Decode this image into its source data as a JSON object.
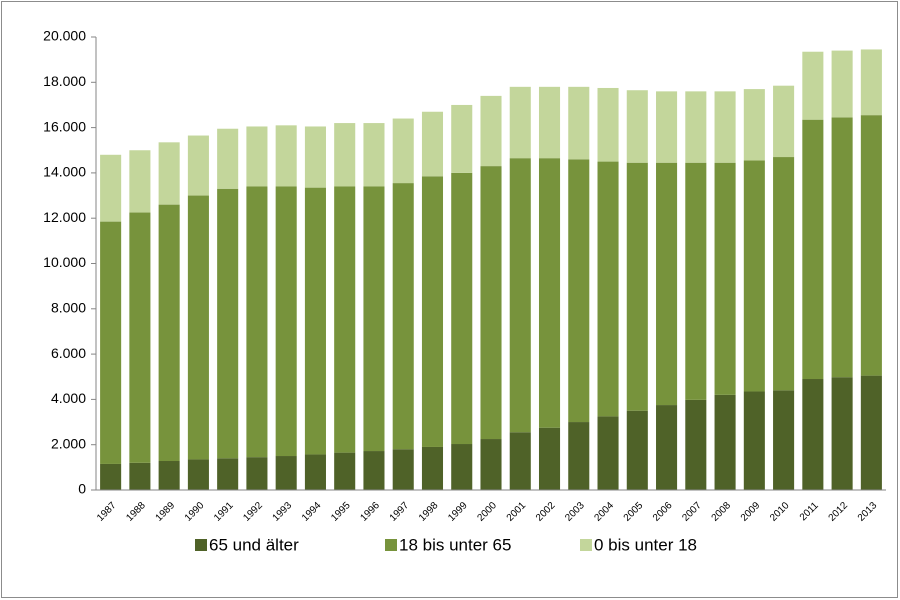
{
  "chart_data": {
    "type": "stacked_bar",
    "categories": [
      "1987",
      "1988",
      "1989",
      "1990",
      "1991",
      "1992",
      "1993",
      "1994",
      "1995",
      "1996",
      "1997",
      "1998",
      "1999",
      "2000",
      "2001",
      "2002",
      "2003",
      "2004",
      "2005",
      "2006",
      "2007",
      "2008",
      "2009",
      "2010",
      "2011",
      "2012",
      "2013"
    ],
    "series": [
      {
        "name": "65 und älter",
        "color": "#4f6228",
        "values": [
          1150,
          1200,
          1280,
          1350,
          1400,
          1450,
          1500,
          1570,
          1650,
          1720,
          1800,
          1900,
          2030,
          2250,
          2550,
          2750,
          3000,
          3250,
          3500,
          3750,
          3980,
          4200,
          4350,
          4400,
          4900,
          4980,
          5050
        ]
      },
      {
        "name": "18 bis unter 65",
        "color": "#77933c",
        "values": [
          10700,
          11050,
          11320,
          11650,
          11900,
          11950,
          11900,
          11780,
          11750,
          11680,
          11750,
          11950,
          11970,
          12050,
          12100,
          11900,
          11600,
          11250,
          10950,
          10700,
          10470,
          10250,
          10200,
          10300,
          11450,
          11470,
          11500
        ]
      },
      {
        "name": "0 bis unter 18",
        "color": "#c3d69b",
        "values": [
          2950,
          2750,
          2750,
          2650,
          2650,
          2650,
          2700,
          2700,
          2800,
          2800,
          2850,
          2850,
          3000,
          3100,
          3150,
          3150,
          3200,
          3250,
          3200,
          3150,
          3150,
          3150,
          3150,
          3150,
          3000,
          2950,
          2900
        ]
      }
    ],
    "ylim": [
      0,
      20000
    ],
    "yticks": [
      0,
      {
        "value": 2000,
        "label": "2.000"
      },
      {
        "value": 4000,
        "label": "4.000"
      },
      {
        "value": 6000,
        "label": "6.000"
      },
      {
        "value": 8000,
        "label": "8.000"
      },
      {
        "value": 10000,
        "label": "10.000"
      },
      {
        "value": 12000,
        "label": "12.000"
      },
      {
        "value": 14000,
        "label": "14.000"
      },
      {
        "value": 16000,
        "label": "16.000"
      },
      {
        "value": 18000,
        "label": "18.000"
      },
      {
        "value": 20000,
        "label": "20.000"
      }
    ],
    "grid": false,
    "legend": "bottom"
  }
}
